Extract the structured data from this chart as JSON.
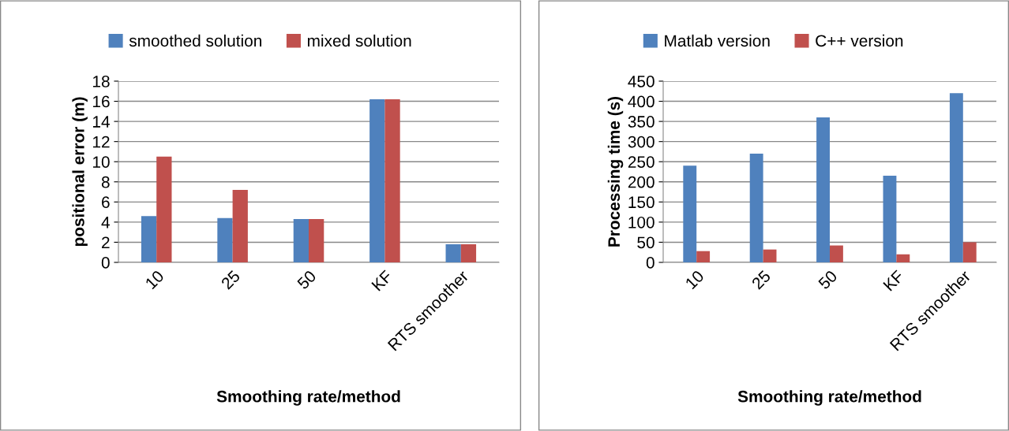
{
  "chart_data": [
    {
      "type": "bar",
      "xlabel": "Smoothing rate/method",
      "ylabel": "positional error (m)",
      "categories": [
        "10",
        "25",
        "50",
        "KF",
        "RTS smoother"
      ],
      "series": [
        {
          "name": "smoothed solution",
          "color": "#4f81bd",
          "values": [
            4.6,
            4.4,
            4.3,
            16.2,
            1.8
          ]
        },
        {
          "name": "mixed solution",
          "color": "#c0504d",
          "values": [
            10.5,
            7.2,
            4.3,
            16.2,
            1.8
          ]
        }
      ],
      "ylim": [
        0,
        18
      ],
      "yticks": [
        0,
        2,
        4,
        6,
        8,
        10,
        12,
        14,
        16,
        18
      ],
      "grid": "y",
      "legend": "top"
    },
    {
      "type": "bar",
      "xlabel": "Smoothing rate/method",
      "ylabel": "Processing time (s)",
      "categories": [
        "10",
        "25",
        "50",
        "KF",
        "RTS smoother"
      ],
      "series": [
        {
          "name": "Matlab version",
          "color": "#4f81bd",
          "values": [
            240,
            270,
            360,
            215,
            420
          ]
        },
        {
          "name": "C++ version",
          "color": "#c0504d",
          "values": [
            28,
            32,
            42,
            20,
            50
          ]
        }
      ],
      "ylim": [
        0,
        450
      ],
      "yticks": [
        0,
        50,
        100,
        150,
        200,
        250,
        300,
        350,
        400,
        450
      ],
      "grid": "y",
      "legend": "top"
    }
  ]
}
